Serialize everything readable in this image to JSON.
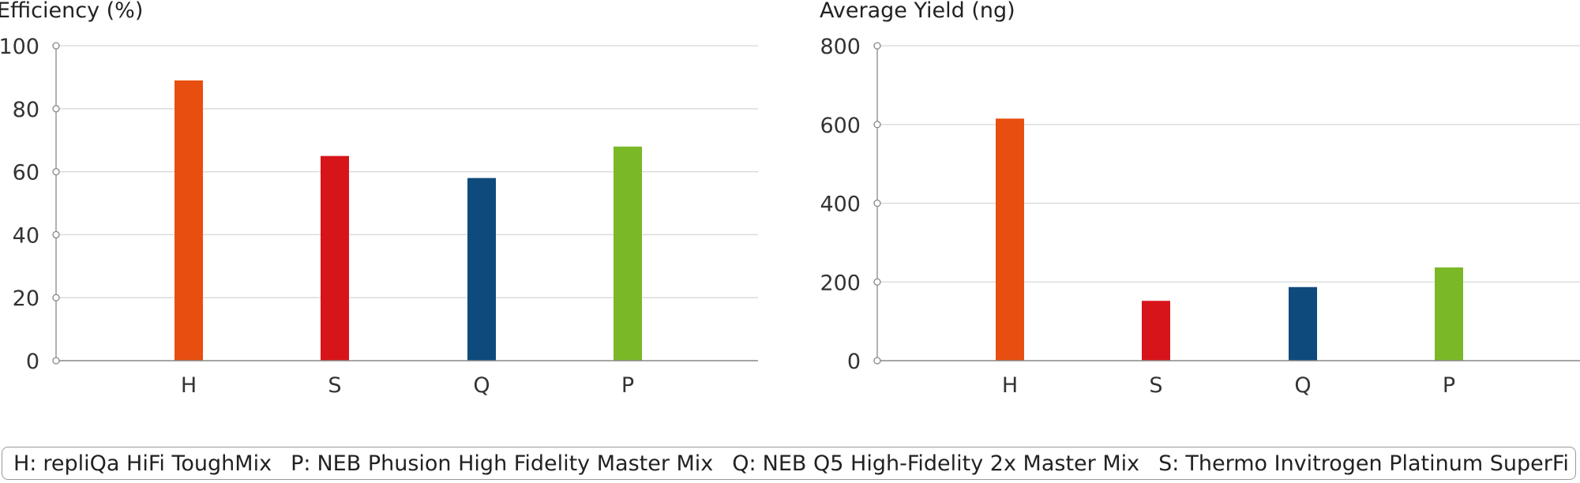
{
  "chart_data": [
    {
      "type": "bar",
      "title": "",
      "ylabel": "Efficiency (%)",
      "xlabel": "",
      "categories": [
        "H",
        "S",
        "Q",
        "P"
      ],
      "values": [
        89,
        65,
        58,
        68
      ],
      "ylim": [
        0,
        100
      ],
      "yticks": [
        0,
        20,
        40,
        60,
        80,
        100
      ],
      "grid": true
    },
    {
      "type": "bar",
      "title": "",
      "ylabel": "Average Yield (ng)",
      "xlabel": "",
      "categories": [
        "H",
        "S",
        "Q",
        "P"
      ],
      "values": [
        615,
        152,
        187,
        237
      ],
      "ylim": [
        0,
        800
      ],
      "yticks": [
        0,
        200,
        400,
        600,
        800
      ],
      "grid": true
    }
  ],
  "bar_colors": [
    "#e84e0f",
    "#d7141a",
    "#0f4a7c",
    "#7ab828"
  ],
  "legend": [
    {
      "key": "H:",
      "label": "repliQa HiFi ToughMix"
    },
    {
      "key": "P:",
      "label": "NEB Phusion High Fidelity Master Mix"
    },
    {
      "key": "Q:",
      "label": "NEB Q5 High-Fidelity 2x Master Mix"
    },
    {
      "key": "S:",
      "label": "Thermo Invitrogen Platinum SuperFi Master Mix"
    }
  ]
}
